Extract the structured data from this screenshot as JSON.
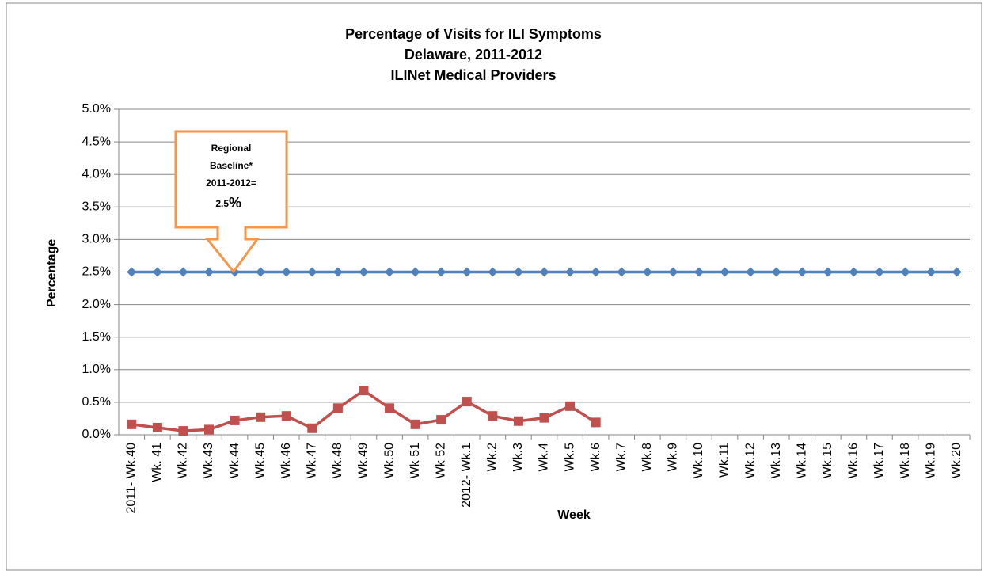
{
  "chart_data": {
    "type": "line",
    "title": [
      "Percentage of Visits for ILI Symptoms",
      "Delaware, 2011-2012",
      "ILINet Medical Providers"
    ],
    "x_label": "Week",
    "y_label": "Percentage",
    "categories": [
      "2011- Wk.40",
      "Wk. 41",
      "Wk.42",
      "Wk.43",
      "Wk.44",
      "Wk.45",
      "Wk.46",
      "Wk.47",
      "Wk.48",
      "Wk.49",
      "Wk.50",
      "Wk 51",
      "Wk 52",
      "2012- Wk.1",
      "Wk.2",
      "Wk.3",
      "Wk.4",
      "Wk.5",
      "Wk.6",
      "Wk.7",
      "Wk.8",
      "Wk.9",
      "Wk.10",
      "Wk.11",
      "Wk.12",
      "Wk.13",
      "Wk.14",
      "Wk.15",
      "Wk.16",
      "Wk.17",
      "Wk.18",
      "Wk.19",
      "Wk.20"
    ],
    "series": [
      {
        "color": "#4f81bd",
        "marker": "diamond",
        "values": [
          2.5,
          2.5,
          2.5,
          2.5,
          2.5,
          2.5,
          2.5,
          2.5,
          2.5,
          2.5,
          2.5,
          2.5,
          2.5,
          2.5,
          2.5,
          2.5,
          2.5,
          2.5,
          2.5,
          2.5,
          2.5,
          2.5,
          2.5,
          2.5,
          2.5,
          2.5,
          2.5,
          2.5,
          2.5,
          2.5,
          2.5,
          2.5,
          2.5
        ]
      },
      {
        "color": "#c0504d",
        "marker": "square",
        "values": [
          0.16,
          0.11,
          0.06,
          0.08,
          0.22,
          0.27,
          0.29,
          0.1,
          0.41,
          0.68,
          0.41,
          0.16,
          0.23,
          0.51,
          0.29,
          0.21,
          0.26,
          0.44,
          0.19,
          null,
          null,
          null,
          null,
          null,
          null,
          null,
          null,
          null,
          null,
          null,
          null,
          null,
          null
        ]
      }
    ],
    "ylim": [
      0,
      5
    ],
    "yticks": [
      {
        "value": 0,
        "label": "0.0%"
      },
      {
        "value": 0.5,
        "label": "0.5%"
      },
      {
        "value": 1,
        "label": "1.0%"
      },
      {
        "value": 1.5,
        "label": "1.5%"
      },
      {
        "value": 2,
        "label": "2.0%"
      },
      {
        "value": 2.5,
        "label": "2.5%"
      },
      {
        "value": 3,
        "label": "3.0%"
      },
      {
        "value": 3.5,
        "label": "3.5%"
      },
      {
        "value": 4,
        "label": "4.0%"
      },
      {
        "value": 4.5,
        "label": "4.5%"
      },
      {
        "value": 5,
        "label": "5.0%"
      }
    ],
    "grid": true,
    "annotation": {
      "lines": [
        "Regional",
        "Baseline*",
        "2011-2012="
      ],
      "value": "2.5",
      "unit": "%",
      "color": "#f79646"
    }
  }
}
